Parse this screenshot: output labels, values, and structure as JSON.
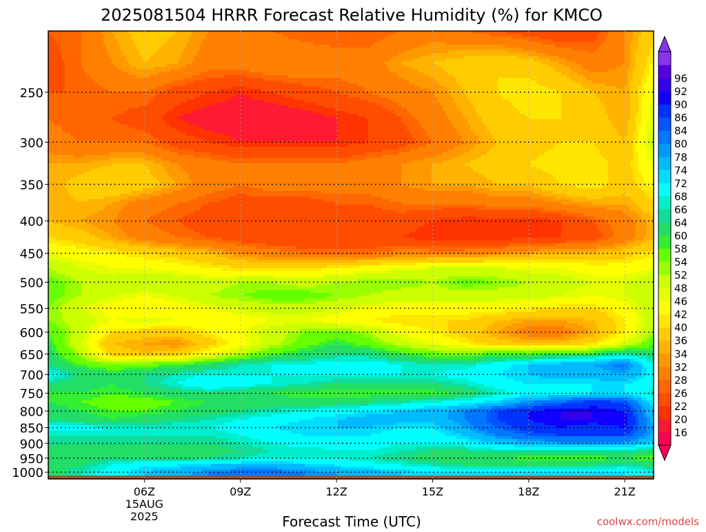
{
  "chart_data": {
    "type": "heatmap",
    "title": "2025081504 HRRR Forecast Relative Humidity (%) for KMCO",
    "xlabel": "Forecast Time (UTC)",
    "ylabel": "",
    "x_unit": "hours UTC",
    "y_unit": "hPa",
    "x_range": [
      3.0,
      21.9
    ],
    "y_range": [
      1025,
      200
    ],
    "y_scale": "log",
    "x_ticks": [
      {
        "value": 6,
        "label": "06Z",
        "sublabels": [
          "15AUG",
          "2025"
        ]
      },
      {
        "value": 9,
        "label": "09Z"
      },
      {
        "value": 12,
        "label": "12Z"
      },
      {
        "value": 15,
        "label": "15Z"
      },
      {
        "value": 18,
        "label": "18Z"
      },
      {
        "value": 21,
        "label": "21Z"
      }
    ],
    "y_ticks": [
      {
        "value": 250,
        "label": "250"
      },
      {
        "value": 300,
        "label": "300"
      },
      {
        "value": 350,
        "label": "350"
      },
      {
        "value": 400,
        "label": "400"
      },
      {
        "value": 450,
        "label": "450"
      },
      {
        "value": 500,
        "label": "500"
      },
      {
        "value": 550,
        "label": "550"
      },
      {
        "value": 600,
        "label": "600"
      },
      {
        "value": 650,
        "label": "650"
      },
      {
        "value": 700,
        "label": "700"
      },
      {
        "value": 750,
        "label": "750"
      },
      {
        "value": 800,
        "label": "800"
      },
      {
        "value": 850,
        "label": "850"
      },
      {
        "value": 900,
        "label": "900"
      },
      {
        "value": 950,
        "label": "950"
      },
      {
        "value": 1000,
        "label": "1000"
      }
    ],
    "grid": true,
    "ground_color": "#a0522d",
    "ground_below_hpa": 1013,
    "x": [
      3,
      4,
      5,
      6,
      7,
      8,
      9,
      10,
      11,
      12,
      13,
      14,
      15,
      16,
      17,
      18,
      19,
      20,
      21,
      22
    ],
    "levels_hpa": [
      200,
      225,
      250,
      275,
      300,
      325,
      350,
      375,
      400,
      425,
      450,
      475,
      500,
      525,
      550,
      575,
      600,
      625,
      650,
      675,
      700,
      725,
      750,
      775,
      800,
      825,
      850,
      875,
      900,
      925,
      950,
      975,
      1000,
      1013
    ],
    "rh": [
      [
        26,
        28,
        34,
        38,
        36,
        32,
        30,
        28,
        26,
        26,
        26,
        28,
        30,
        28,
        26,
        24,
        22,
        24,
        32,
        40
      ],
      [
        24,
        28,
        32,
        36,
        34,
        30,
        30,
        32,
        32,
        30,
        30,
        34,
        36,
        38,
        40,
        38,
        34,
        30,
        32,
        44
      ],
      [
        26,
        26,
        28,
        28,
        24,
        22,
        20,
        22,
        24,
        26,
        28,
        30,
        32,
        36,
        40,
        42,
        40,
        36,
        34,
        48
      ],
      [
        28,
        26,
        26,
        24,
        20,
        18,
        18,
        17,
        18,
        20,
        22,
        26,
        30,
        34,
        38,
        40,
        40,
        38,
        34,
        50
      ],
      [
        30,
        28,
        28,
        28,
        24,
        22,
        20,
        20,
        20,
        20,
        22,
        24,
        28,
        32,
        36,
        38,
        40,
        40,
        36,
        52
      ],
      [
        34,
        34,
        36,
        36,
        32,
        30,
        28,
        28,
        28,
        28,
        30,
        32,
        34,
        36,
        38,
        40,
        42,
        42,
        38,
        48
      ],
      [
        34,
        38,
        40,
        38,
        34,
        30,
        28,
        30,
        30,
        30,
        30,
        32,
        34,
        34,
        36,
        36,
        40,
        42,
        38,
        44
      ],
      [
        34,
        36,
        34,
        30,
        28,
        26,
        24,
        24,
        24,
        26,
        26,
        28,
        28,
        28,
        30,
        30,
        32,
        34,
        34,
        40
      ],
      [
        36,
        34,
        32,
        28,
        26,
        24,
        24,
        22,
        22,
        22,
        24,
        24,
        22,
        20,
        20,
        20,
        22,
        26,
        30,
        36
      ],
      [
        40,
        38,
        34,
        30,
        28,
        26,
        24,
        22,
        22,
        22,
        22,
        22,
        20,
        20,
        20,
        22,
        22,
        24,
        30,
        36
      ],
      [
        46,
        44,
        42,
        40,
        38,
        36,
        32,
        30,
        28,
        28,
        28,
        30,
        30,
        30,
        32,
        34,
        36,
        36,
        38,
        42
      ],
      [
        52,
        48,
        46,
        46,
        44,
        42,
        40,
        40,
        40,
        42,
        44,
        46,
        48,
        48,
        48,
        46,
        46,
        44,
        44,
        46
      ],
      [
        56,
        52,
        50,
        52,
        52,
        50,
        52,
        52,
        50,
        52,
        54,
        54,
        52,
        56,
        54,
        52,
        50,
        48,
        48,
        52
      ],
      [
        56,
        52,
        48,
        46,
        48,
        52,
        54,
        56,
        56,
        54,
        52,
        50,
        50,
        50,
        50,
        50,
        48,
        46,
        48,
        52
      ],
      [
        54,
        48,
        44,
        42,
        44,
        46,
        48,
        50,
        50,
        48,
        46,
        44,
        44,
        44,
        44,
        42,
        40,
        40,
        44,
        52
      ],
      [
        54,
        50,
        46,
        48,
        46,
        44,
        44,
        46,
        46,
        44,
        42,
        40,
        40,
        40,
        36,
        34,
        34,
        36,
        42,
        52
      ],
      [
        58,
        50,
        40,
        38,
        38,
        42,
        46,
        50,
        54,
        56,
        52,
        46,
        42,
        38,
        34,
        30,
        30,
        34,
        42,
        54
      ],
      [
        60,
        48,
        36,
        34,
        32,
        38,
        44,
        50,
        56,
        60,
        56,
        50,
        46,
        42,
        38,
        36,
        36,
        40,
        48,
        58
      ],
      [
        62,
        52,
        38,
        36,
        38,
        44,
        52,
        58,
        62,
        64,
        64,
        60,
        56,
        56,
        58,
        58,
        60,
        62,
        66,
        62
      ],
      [
        64,
        58,
        54,
        56,
        58,
        62,
        66,
        68,
        68,
        70,
        70,
        68,
        66,
        66,
        70,
        74,
        76,
        78,
        82,
        66
      ],
      [
        70,
        64,
        62,
        64,
        66,
        68,
        68,
        68,
        68,
        68,
        68,
        68,
        68,
        70,
        72,
        74,
        76,
        76,
        78,
        70
      ],
      [
        64,
        62,
        60,
        64,
        68,
        72,
        70,
        68,
        66,
        64,
        64,
        64,
        64,
        66,
        70,
        72,
        72,
        72,
        72,
        68
      ],
      [
        60,
        60,
        58,
        60,
        62,
        64,
        62,
        60,
        58,
        58,
        58,
        58,
        58,
        62,
        66,
        70,
        70,
        72,
        72,
        66
      ],
      [
        60,
        58,
        56,
        56,
        58,
        60,
        62,
        62,
        62,
        62,
        64,
        66,
        68,
        70,
        74,
        80,
        84,
        88,
        86,
        70
      ],
      [
        62,
        60,
        58,
        58,
        60,
        62,
        64,
        66,
        68,
        70,
        72,
        74,
        76,
        80,
        86,
        90,
        92,
        92,
        90,
        72
      ],
      [
        64,
        62,
        60,
        62,
        64,
        66,
        68,
        70,
        72,
        74,
        76,
        76,
        76,
        80,
        86,
        90,
        92,
        92,
        92,
        74
      ],
      [
        70,
        70,
        68,
        68,
        68,
        68,
        70,
        72,
        74,
        74,
        74,
        72,
        72,
        78,
        84,
        88,
        90,
        88,
        90,
        76
      ],
      [
        66,
        66,
        66,
        66,
        66,
        66,
        68,
        70,
        72,
        72,
        72,
        70,
        70,
        74,
        80,
        84,
        86,
        86,
        86,
        76
      ],
      [
        64,
        64,
        64,
        64,
        64,
        64,
        66,
        68,
        70,
        70,
        70,
        68,
        68,
        70,
        74,
        76,
        78,
        78,
        78,
        72
      ],
      [
        62,
        62,
        62,
        62,
        62,
        62,
        64,
        66,
        66,
        68,
        68,
        66,
        64,
        64,
        66,
        66,
        66,
        66,
        66,
        62
      ],
      [
        60,
        62,
        64,
        64,
        64,
        64,
        66,
        68,
        68,
        68,
        66,
        64,
        62,
        60,
        60,
        58,
        58,
        58,
        60,
        56
      ],
      [
        62,
        64,
        68,
        72,
        72,
        74,
        76,
        76,
        74,
        72,
        70,
        68,
        66,
        64,
        64,
        64,
        64,
        64,
        66,
        62
      ],
      [
        62,
        66,
        70,
        74,
        76,
        80,
        82,
        82,
        80,
        78,
        76,
        74,
        72,
        72,
        72,
        72,
        72,
        72,
        72,
        68
      ],
      [
        62,
        66,
        70,
        74,
        76,
        80,
        82,
        82,
        80,
        78,
        76,
        74,
        72,
        72,
        72,
        72,
        72,
        72,
        72,
        68
      ]
    ],
    "colorbar": {
      "levels": [
        16,
        20,
        22,
        26,
        28,
        32,
        34,
        36,
        40,
        42,
        46,
        48,
        52,
        54,
        58,
        60,
        64,
        66,
        68,
        72,
        74,
        78,
        80,
        84,
        86,
        90,
        92,
        96
      ],
      "colors": [
        "#ff0055",
        "#ff1a33",
        "#ff3300",
        "#ff4d00",
        "#ff6600",
        "#ff8000",
        "#ff9900",
        "#ffb300",
        "#ffcc00",
        "#ffe600",
        "#ffff00",
        "#e6ff00",
        "#ccff00",
        "#99ff00",
        "#66ff00",
        "#33ee33",
        "#22dd66",
        "#11dd99",
        "#00eecc",
        "#00ffff",
        "#00ddff",
        "#00bbff",
        "#0099ff",
        "#0077ff",
        "#0055ff",
        "#0033ff",
        "#1100ff",
        "#3300ee",
        "#5500dd",
        "#8833ee"
      ]
    }
  },
  "watermark": "coolwx.com/models"
}
